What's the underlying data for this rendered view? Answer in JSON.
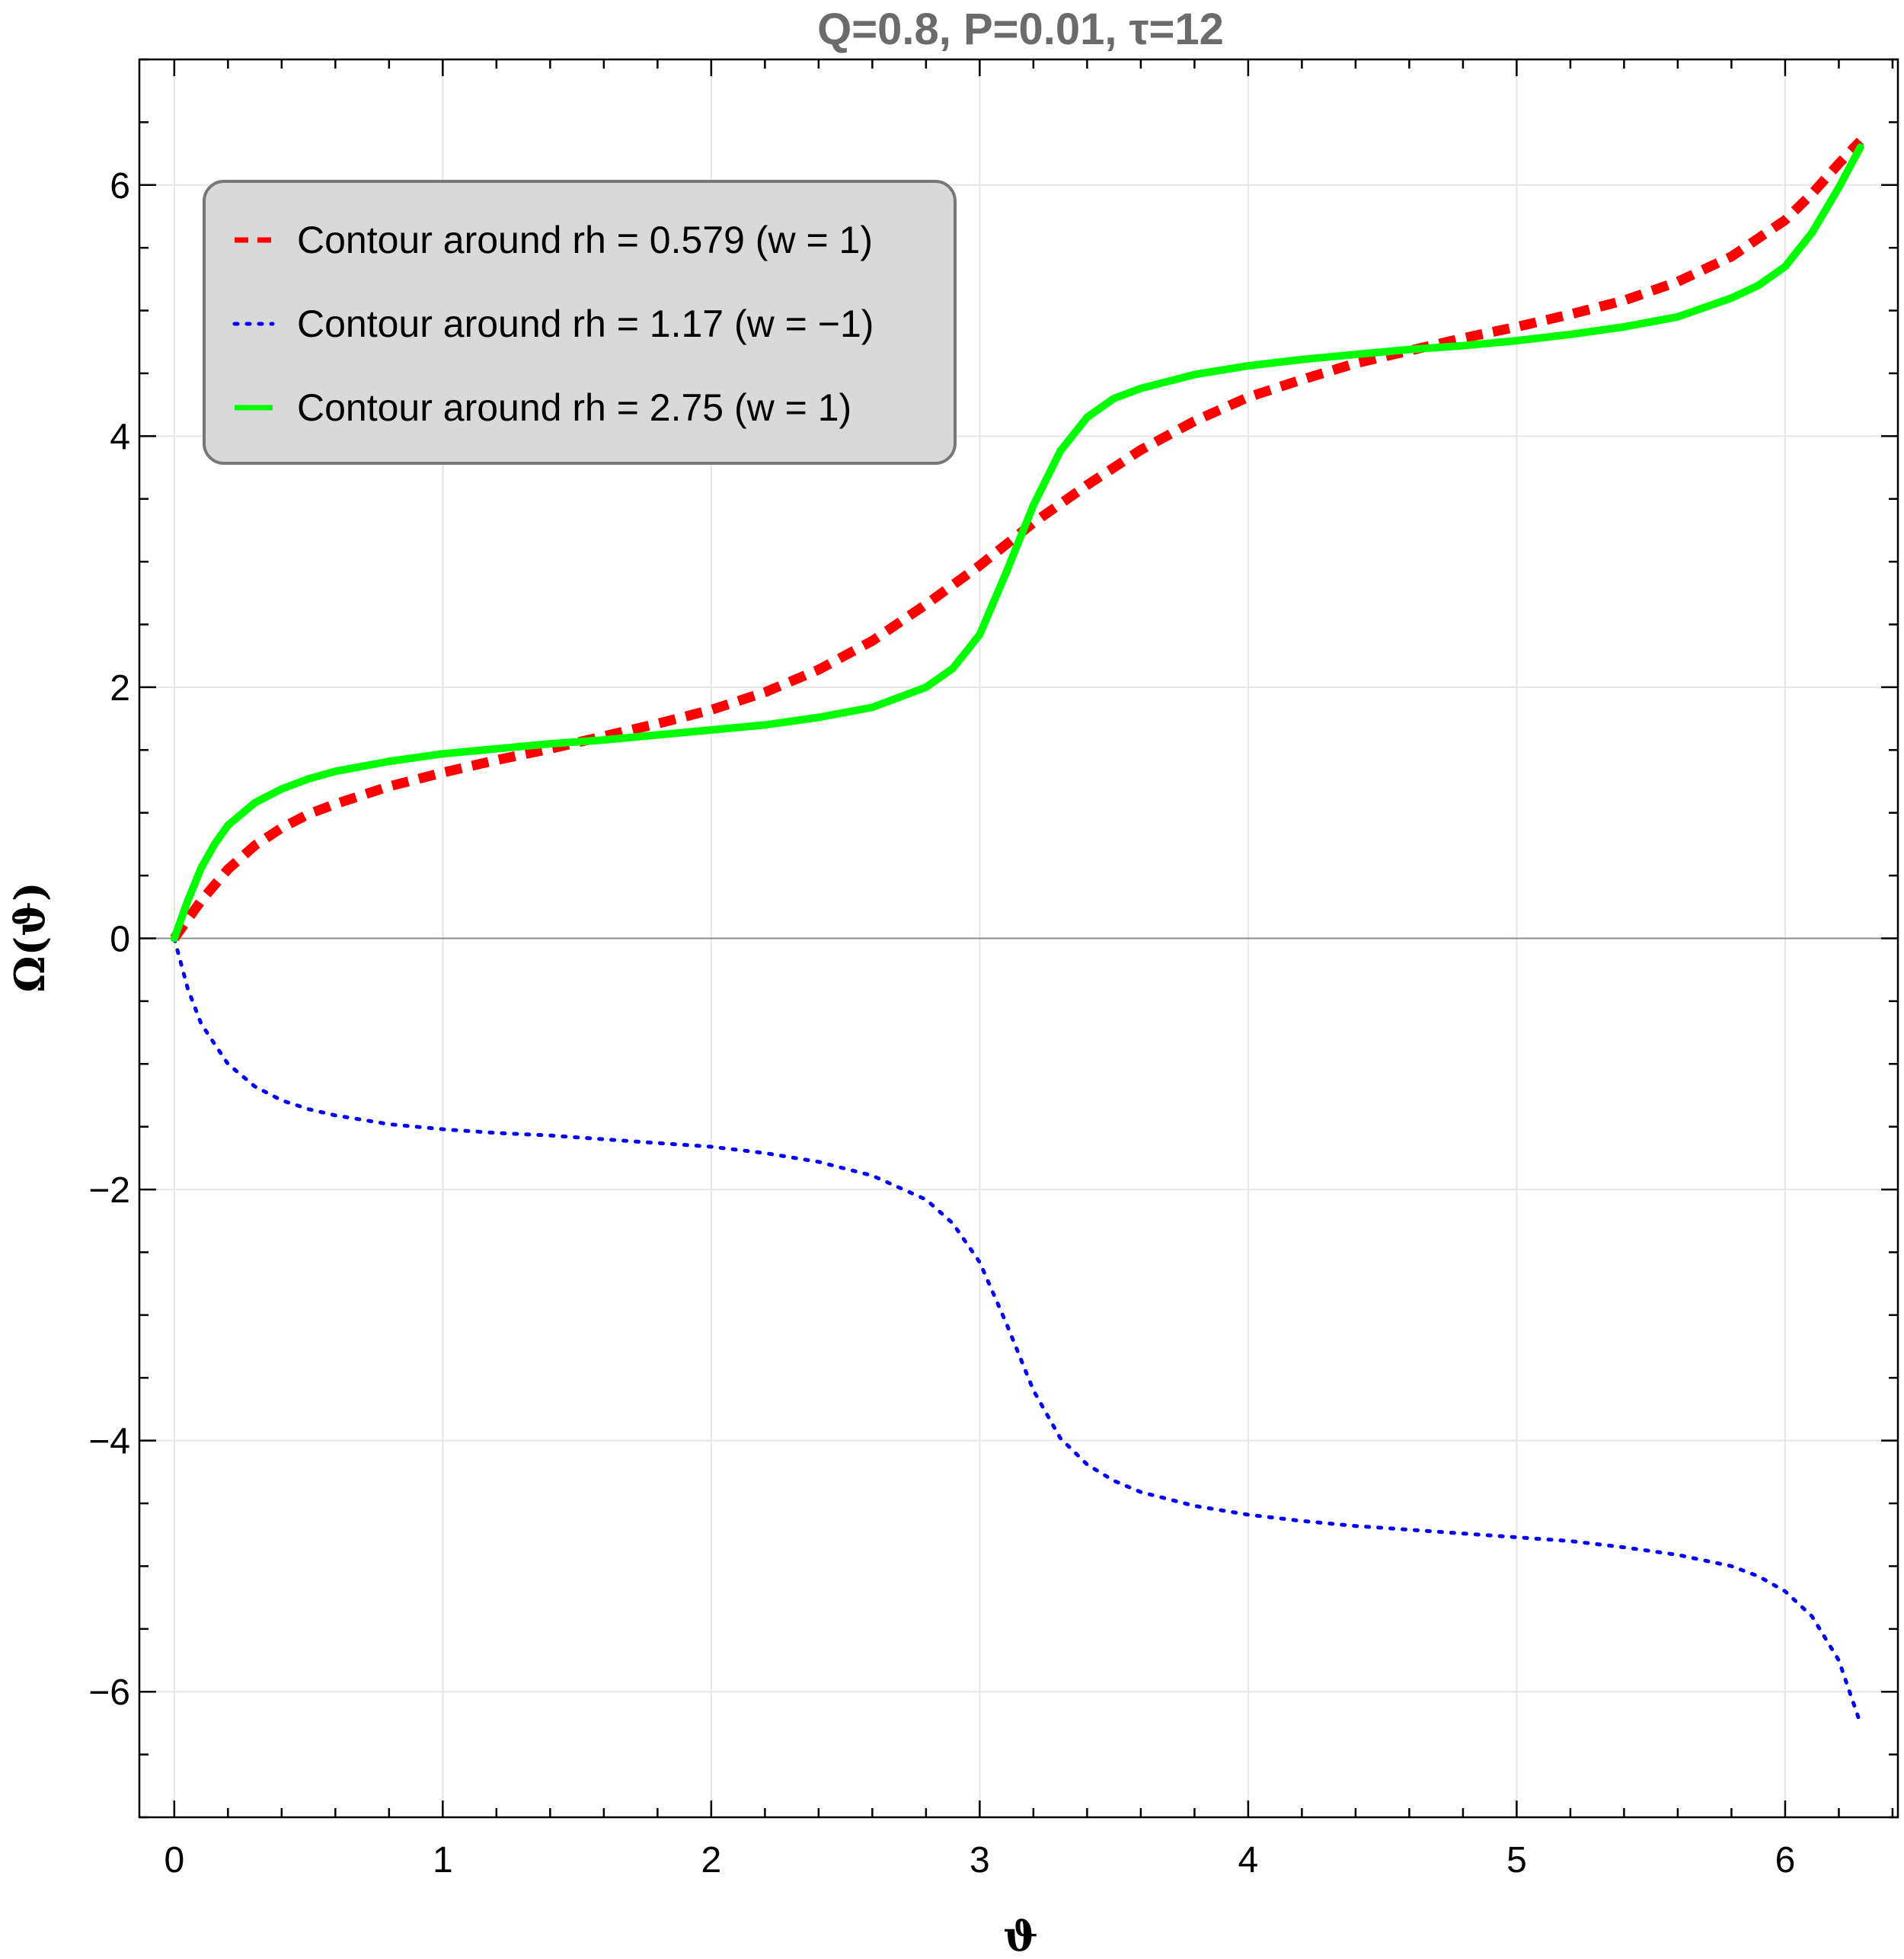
{
  "chart_data": {
    "type": "line",
    "title": "Q=0.8, P=0.01, τ=12",
    "xlabel": "ϑ",
    "ylabel": "Ω(ϑ)",
    "xlim": [
      -0.13,
      6.42
    ],
    "ylim": [
      -7.0,
      7.0
    ],
    "xticks": [
      0,
      1,
      2,
      3,
      4,
      5,
      6
    ],
    "yticks": [
      -6,
      -4,
      -2,
      0,
      2,
      4,
      6
    ],
    "xtick_labels": [
      "0",
      "1",
      "2",
      "3",
      "4",
      "5",
      "6"
    ],
    "ytick_labels": [
      "−6",
      "−4",
      "−2",
      "0",
      "2",
      "4",
      "6"
    ],
    "grid": true,
    "legend_position": "top-left",
    "series": [
      {
        "name": "Contour around rh = 0.579 (w = 1)",
        "color": "#ff0000",
        "style": "dashed",
        "x": [
          0,
          0.1,
          0.2,
          0.3,
          0.4,
          0.5,
          0.6,
          0.8,
          1.0,
          1.2,
          1.4,
          1.6,
          1.8,
          2.0,
          2.2,
          2.4,
          2.6,
          2.8,
          3.0,
          3.2,
          3.4,
          3.6,
          3.8,
          4.0,
          4.2,
          4.4,
          4.6,
          4.8,
          5.0,
          5.2,
          5.4,
          5.6,
          5.8,
          6.0,
          6.1,
          6.2,
          6.28
        ],
        "y": [
          0,
          0.3,
          0.55,
          0.74,
          0.88,
          0.99,
          1.07,
          1.21,
          1.32,
          1.42,
          1.51,
          1.61,
          1.71,
          1.82,
          1.96,
          2.14,
          2.37,
          2.66,
          2.97,
          3.31,
          3.61,
          3.89,
          4.12,
          4.31,
          4.45,
          4.58,
          4.68,
          4.78,
          4.87,
          4.97,
          5.08,
          5.23,
          5.43,
          5.72,
          5.93,
          6.17,
          6.35
        ]
      },
      {
        "name": "Contour around rh = 1.17 (w = −1)",
        "color": "#0000ff",
        "style": "dotted",
        "x": [
          0,
          0.05,
          0.1,
          0.2,
          0.3,
          0.4,
          0.5,
          0.6,
          0.8,
          1.0,
          1.2,
          1.4,
          1.6,
          1.8,
          2.0,
          2.2,
          2.4,
          2.6,
          2.8,
          2.9,
          3.0,
          3.1,
          3.2,
          3.3,
          3.4,
          3.5,
          3.6,
          3.8,
          4.0,
          4.2,
          4.4,
          4.6,
          4.8,
          5.0,
          5.2,
          5.4,
          5.6,
          5.8,
          5.9,
          6.0,
          6.1,
          6.2,
          6.28
        ],
        "y": [
          0,
          -0.4,
          -0.68,
          -1.0,
          -1.18,
          -1.29,
          -1.36,
          -1.41,
          -1.48,
          -1.52,
          -1.55,
          -1.57,
          -1.6,
          -1.63,
          -1.66,
          -1.71,
          -1.78,
          -1.89,
          -2.08,
          -2.27,
          -2.58,
          -3.07,
          -3.6,
          -3.98,
          -4.19,
          -4.32,
          -4.41,
          -4.52,
          -4.59,
          -4.64,
          -4.68,
          -4.71,
          -4.74,
          -4.77,
          -4.8,
          -4.85,
          -4.91,
          -5.0,
          -5.08,
          -5.2,
          -5.4,
          -5.75,
          -6.25
        ]
      },
      {
        "name": "Contour around rh = 2.75 (w = 1)",
        "color": "#00ff00",
        "style": "solid",
        "x": [
          0,
          0.05,
          0.1,
          0.15,
          0.2,
          0.3,
          0.4,
          0.5,
          0.6,
          0.8,
          1.0,
          1.2,
          1.4,
          1.6,
          1.8,
          2.0,
          2.2,
          2.4,
          2.6,
          2.8,
          2.9,
          3.0,
          3.1,
          3.2,
          3.3,
          3.4,
          3.5,
          3.6,
          3.8,
          4.0,
          4.2,
          4.4,
          4.6,
          4.8,
          5.0,
          5.2,
          5.4,
          5.6,
          5.8,
          5.9,
          6.0,
          6.1,
          6.2,
          6.28
        ],
        "y": [
          0,
          0.3,
          0.56,
          0.75,
          0.9,
          1.08,
          1.19,
          1.27,
          1.33,
          1.41,
          1.47,
          1.51,
          1.55,
          1.58,
          1.62,
          1.66,
          1.7,
          1.76,
          1.84,
          2.0,
          2.15,
          2.42,
          2.92,
          3.45,
          3.88,
          4.15,
          4.3,
          4.38,
          4.49,
          4.56,
          4.61,
          4.65,
          4.69,
          4.72,
          4.76,
          4.81,
          4.87,
          4.95,
          5.1,
          5.2,
          5.35,
          5.62,
          5.98,
          6.3
        ]
      }
    ]
  }
}
